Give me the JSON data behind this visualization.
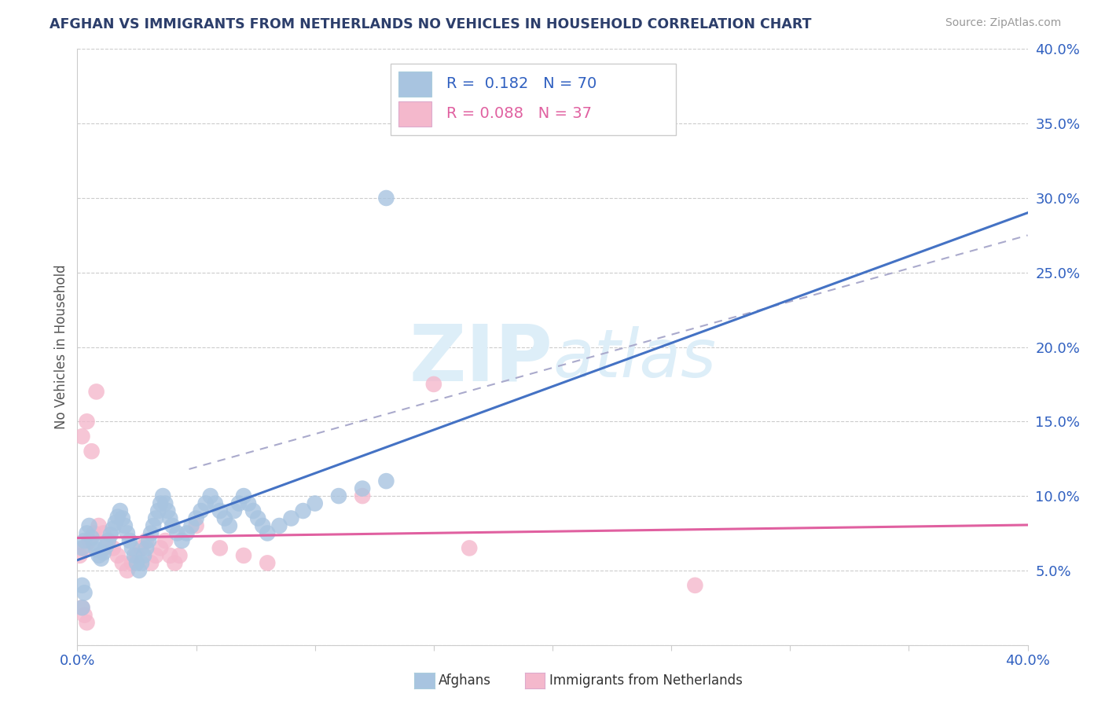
{
  "title": "AFGHAN VS IMMIGRANTS FROM NETHERLANDS NO VEHICLES IN HOUSEHOLD CORRELATION CHART",
  "source": "Source: ZipAtlas.com",
  "ylabel": "No Vehicles in Household",
  "xlim": [
    0.0,
    0.4
  ],
  "ylim": [
    0.0,
    0.4
  ],
  "xticks": [
    0.0,
    0.05,
    0.1,
    0.15,
    0.2,
    0.25,
    0.3,
    0.35,
    0.4
  ],
  "yticks": [
    0.0,
    0.05,
    0.1,
    0.15,
    0.2,
    0.25,
    0.3,
    0.35,
    0.4
  ],
  "group1_name": "Afghans",
  "group1_color": "#a8c4e0",
  "group1_edge_color": "#7aaed0",
  "group1_line_color": "#4472c4",
  "group1_R": 0.182,
  "group1_N": 70,
  "group1_x": [
    0.002,
    0.003,
    0.004,
    0.005,
    0.006,
    0.007,
    0.008,
    0.009,
    0.01,
    0.011,
    0.012,
    0.013,
    0.014,
    0.015,
    0.016,
    0.017,
    0.018,
    0.019,
    0.02,
    0.021,
    0.022,
    0.023,
    0.024,
    0.025,
    0.026,
    0.027,
    0.028,
    0.029,
    0.03,
    0.031,
    0.032,
    0.033,
    0.034,
    0.035,
    0.036,
    0.037,
    0.038,
    0.039,
    0.04,
    0.042,
    0.044,
    0.046,
    0.048,
    0.05,
    0.052,
    0.054,
    0.056,
    0.058,
    0.06,
    0.062,
    0.064,
    0.066,
    0.068,
    0.07,
    0.072,
    0.074,
    0.076,
    0.078,
    0.08,
    0.085,
    0.09,
    0.095,
    0.1,
    0.11,
    0.12,
    0.13,
    0.002,
    0.003,
    0.13,
    0.002
  ],
  "group1_y": [
    0.065,
    0.07,
    0.075,
    0.08,
    0.072,
    0.068,
    0.064,
    0.06,
    0.058,
    0.062,
    0.066,
    0.07,
    0.074,
    0.078,
    0.082,
    0.086,
    0.09,
    0.085,
    0.08,
    0.075,
    0.07,
    0.065,
    0.06,
    0.055,
    0.05,
    0.055,
    0.06,
    0.065,
    0.07,
    0.075,
    0.08,
    0.085,
    0.09,
    0.095,
    0.1,
    0.095,
    0.09,
    0.085,
    0.08,
    0.075,
    0.07,
    0.075,
    0.08,
    0.085,
    0.09,
    0.095,
    0.1,
    0.095,
    0.09,
    0.085,
    0.08,
    0.09,
    0.095,
    0.1,
    0.095,
    0.09,
    0.085,
    0.08,
    0.075,
    0.08,
    0.085,
    0.09,
    0.095,
    0.1,
    0.105,
    0.11,
    0.04,
    0.035,
    0.3,
    0.025
  ],
  "group2_name": "Immigrants from Netherlands",
  "group2_color": "#f4b8cc",
  "group2_edge_color": "#e080a0",
  "group2_line_color": "#e060a0",
  "group2_R": 0.088,
  "group2_N": 37,
  "group2_x": [
    0.001,
    0.003,
    0.005,
    0.007,
    0.009,
    0.011,
    0.013,
    0.015,
    0.017,
    0.019,
    0.021,
    0.023,
    0.025,
    0.027,
    0.029,
    0.031,
    0.033,
    0.035,
    0.037,
    0.039,
    0.041,
    0.043,
    0.05,
    0.06,
    0.07,
    0.08,
    0.002,
    0.004,
    0.006,
    0.008,
    0.12,
    0.15,
    0.165,
    0.26,
    0.002,
    0.003,
    0.004
  ],
  "group2_y": [
    0.06,
    0.065,
    0.07,
    0.075,
    0.08,
    0.075,
    0.07,
    0.065,
    0.06,
    0.055,
    0.05,
    0.055,
    0.06,
    0.065,
    0.07,
    0.055,
    0.06,
    0.065,
    0.07,
    0.06,
    0.055,
    0.06,
    0.08,
    0.065,
    0.06,
    0.055,
    0.14,
    0.15,
    0.13,
    0.17,
    0.1,
    0.175,
    0.065,
    0.04,
    0.025,
    0.02,
    0.015
  ],
  "dashed_line": [
    [
      0.047,
      0.4
    ],
    [
      0.118,
      0.275
    ]
  ],
  "background_color": "#ffffff",
  "grid_color": "#cccccc",
  "title_color": "#2c3e6b",
  "source_color": "#999999",
  "legend_text_color": "#2c3e6b",
  "legend_R1_color": "#3060c0",
  "legend_R2_color": "#e060a0",
  "watermark_color": "#ddeef8",
  "ylabel_color": "#555555"
}
